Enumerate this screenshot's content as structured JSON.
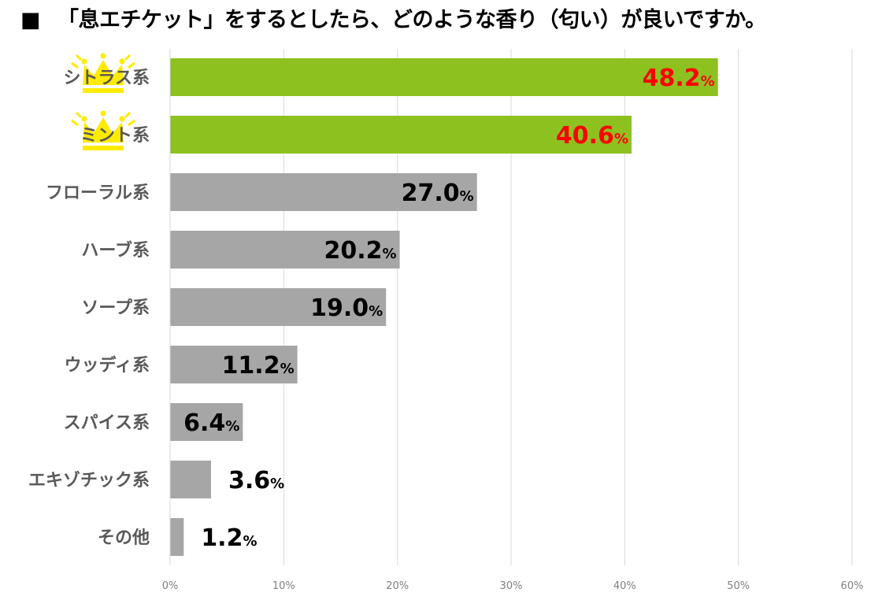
{
  "title": {
    "marker": "■",
    "text": "「息エチケット」をするとしたら、どのような香り（匂い）が良いですか。"
  },
  "chart_data": {
    "type": "bar",
    "orientation": "horizontal",
    "title": "「息エチケット」をするとしたら、どのような香り（匂い）が良いですか。",
    "xlabel": "",
    "ylabel": "",
    "categories": [
      "シトラス系",
      "ミント系",
      "フローラル系",
      "ハーブ系",
      "ソープ系",
      "ウッディ系",
      "スパイス系",
      "エキゾチック系",
      "その他"
    ],
    "values": [
      48.2,
      40.6,
      27.0,
      20.2,
      19.0,
      11.2,
      6.4,
      3.6,
      1.2
    ],
    "value_labels": [
      "48.2",
      "40.6",
      "27.0",
      "20.2",
      "19.0",
      "11.2",
      "6.4",
      "3.6",
      "1.2"
    ],
    "value_unit": "%",
    "xlim": [
      0,
      60
    ],
    "x_ticks": [
      "0%",
      "10%",
      "20%",
      "30%",
      "40%",
      "50%",
      "60%"
    ],
    "x_tick_values": [
      0,
      10,
      20,
      30,
      40,
      50,
      60
    ],
    "grid": "vertical",
    "legend": "none",
    "highlighted_count": 2,
    "crowned_categories": [
      "シトラス系",
      "ミント系"
    ],
    "colors": {
      "highlight_bar": "#8cc11f",
      "default_bar": "#a6a6a6",
      "highlight_label": "#ff0000",
      "default_label": "#000000",
      "crown": "#ffeb00",
      "grid": "#d9d9d9",
      "category_text": "#595959",
      "tick_text": "#7f7f7f"
    }
  }
}
